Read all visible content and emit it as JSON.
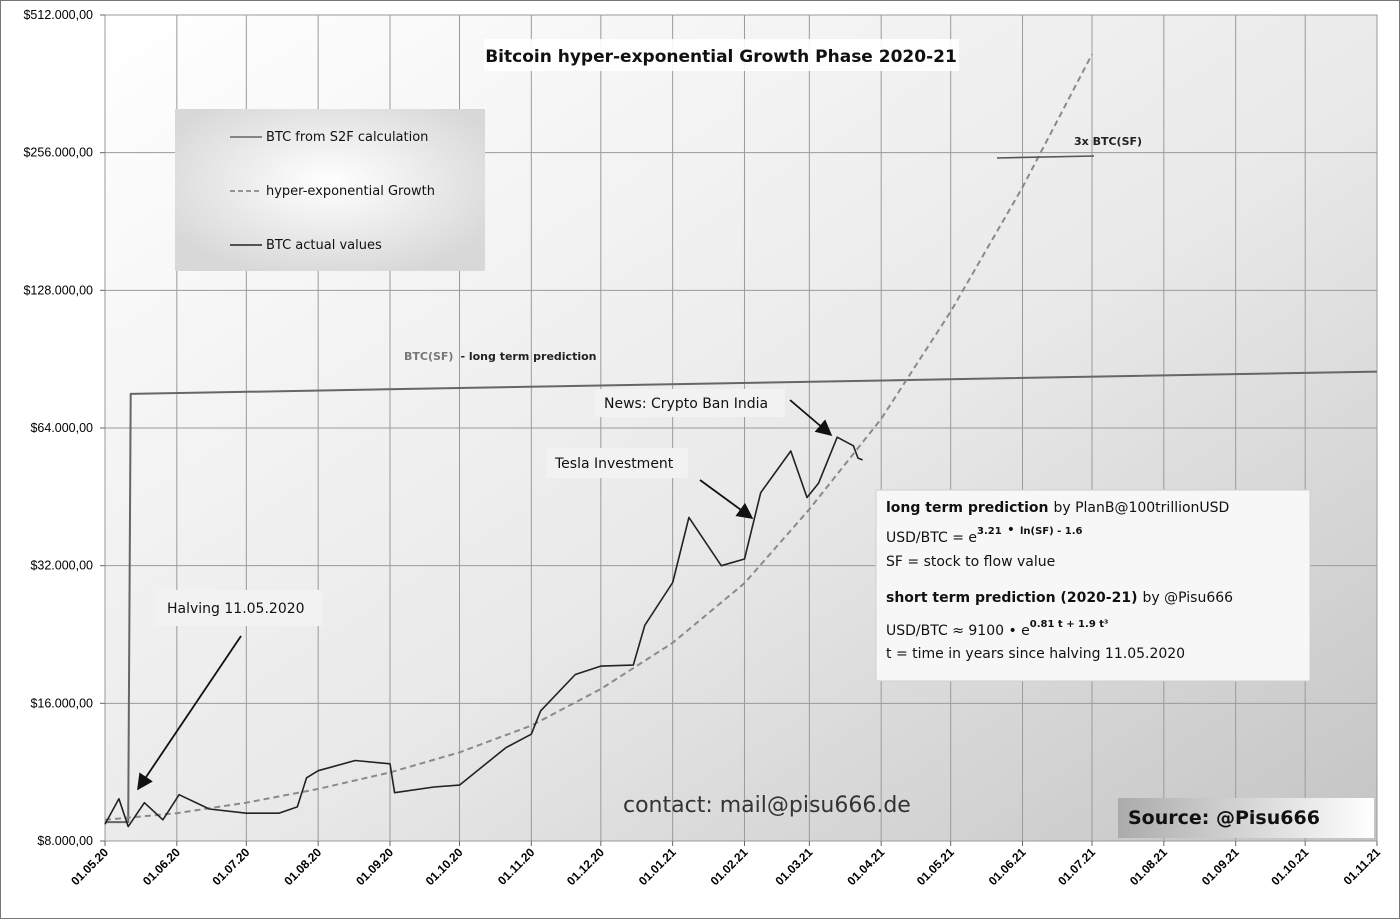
{
  "chart_data": {
    "type": "line",
    "title": "Bitcoin hyper-exponential Growth Phase 2020-21",
    "y_scale": "log2",
    "ylim": [
      8000,
      512000
    ],
    "y_ticks": [
      {
        "value": 8000,
        "label": "$8.000,00"
      },
      {
        "value": 16000,
        "label": "$16.000,00"
      },
      {
        "value": 32000,
        "label": "$32.000,00"
      },
      {
        "value": 64000,
        "label": "$64.000,00"
      },
      {
        "value": 128000,
        "label": "$128.000,00"
      },
      {
        "value": 256000,
        "label": "$256.000,00"
      },
      {
        "value": 512000,
        "label": "$512.000,00"
      }
    ],
    "x_ticks": [
      "01.05.20",
      "01.06.20",
      "01.07.20",
      "01.08.20",
      "01.09.20",
      "01.10.20",
      "01.11.20",
      "01.12.20",
      "01.01.21",
      "01.02.21",
      "01.03.21",
      "01.04.21",
      "01.05.21",
      "01.06.21",
      "01.07.21",
      "01.08.21",
      "01.09.21",
      "01.10.21",
      "01.11.21"
    ],
    "grid": true,
    "legend": {
      "position": "top-left",
      "entries": [
        {
          "label": "BTC from S2F calculation",
          "style": "solid",
          "color": "#666666"
        },
        {
          "label": "hyper-exponential Growth",
          "style": "dashed",
          "color": "#8a8a8a"
        },
        {
          "label": "BTC actual values",
          "style": "solid",
          "color": "#222222"
        }
      ]
    },
    "series": [
      {
        "name": "BTC from S2F calculation",
        "color": "#666666",
        "points": [
          [
            "01.05.20",
            8800
          ],
          [
            "11.05.20",
            8800
          ],
          [
            "11.05.20",
            76000
          ],
          [
            "01.11.21",
            85000
          ]
        ]
      },
      {
        "name": "hyper-exponential Growth",
        "color": "#8a8a8a",
        "points": [
          [
            "01.05.20",
            8900
          ],
          [
            "01.06.20",
            9200
          ],
          [
            "01.07.20",
            9700
          ],
          [
            "01.08.20",
            10400
          ],
          [
            "01.09.20",
            11300
          ],
          [
            "01.10.20",
            12500
          ],
          [
            "01.11.20",
            14300
          ],
          [
            "01.12.20",
            17200
          ],
          [
            "01.01.21",
            21700
          ],
          [
            "01.02.21",
            29300
          ],
          [
            "01.03.21",
            42500
          ],
          [
            "01.04.21",
            67000
          ],
          [
            "01.05.21",
            115000
          ],
          [
            "01.06.21",
            215000
          ],
          [
            "01.07.21",
            420000
          ]
        ]
      },
      {
        "name": "BTC actual values",
        "color": "#222222",
        "points": [
          [
            "01.05.20",
            8700
          ],
          [
            "07.05.20",
            9900
          ],
          [
            "11.05.20",
            8600
          ],
          [
            "18.05.20",
            9700
          ],
          [
            "26.05.20",
            8900
          ],
          [
            "02.06.20",
            10100
          ],
          [
            "15.06.20",
            9400
          ],
          [
            "01.07.20",
            9200
          ],
          [
            "15.07.20",
            9200
          ],
          [
            "23.07.20",
            9500
          ],
          [
            "27.07.20",
            11000
          ],
          [
            "01.08.20",
            11400
          ],
          [
            "17.08.20",
            12000
          ],
          [
            "01.09.20",
            11800
          ],
          [
            "03.09.20",
            10200
          ],
          [
            "20.09.20",
            10500
          ],
          [
            "01.10.20",
            10600
          ],
          [
            "21.10.20",
            12800
          ],
          [
            "01.11.20",
            13700
          ],
          [
            "05.11.20",
            15400
          ],
          [
            "20.11.20",
            18500
          ],
          [
            "01.12.20",
            19300
          ],
          [
            "15.12.20",
            19400
          ],
          [
            "20.12.20",
            23700
          ],
          [
            "01.01.21",
            29400
          ],
          [
            "08.01.21",
            40800
          ],
          [
            "22.01.21",
            32000
          ],
          [
            "01.02.21",
            33100
          ],
          [
            "08.02.21",
            46200
          ],
          [
            "21.02.21",
            57000
          ],
          [
            "28.02.21",
            45100
          ],
          [
            "05.03.21",
            48500
          ],
          [
            "13.03.21",
            61100
          ],
          [
            "20.03.21",
            58500
          ],
          [
            "22.03.21",
            55000
          ],
          [
            "24.03.21",
            54500
          ]
        ]
      }
    ],
    "annotations": {
      "s2f_label": "BTC(SF)",
      "s2f_label_suffix": "- long term prediction",
      "three_x_label": "3x BTC(SF)",
      "halving": "Halving 11.05.2020",
      "tesla": "Tesla Investment",
      "india": "News: Crypto Ban India"
    },
    "info_box": {
      "l1_bold": "long term prediction",
      "l1_rest": "by PlanB@100trillionUSD",
      "l2_prefix": "USD/BTC  = e",
      "l2_sup1": "3.21",
      "l2_dot": "•",
      "l2_sup2": "ln(SF) - 1.6",
      "l3": "SF = stock to flow value",
      "l4_bold": "short term prediction (2020-21)",
      "l4_rest": "by @Pisu666",
      "l5_prefix": "USD/BTC ≈ 9100 • e",
      "l5_sup": "0.81 t + 1.9 t³",
      "l6": "t = time in years since halving 11.05.2020"
    },
    "contact": "contact: mail@pisu666.de",
    "source": "Source: @Pisu666"
  }
}
